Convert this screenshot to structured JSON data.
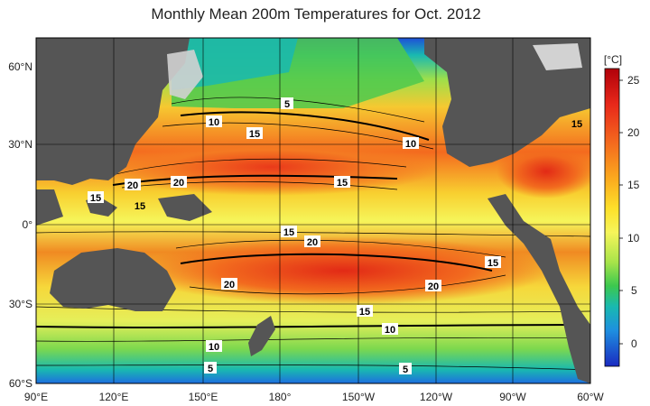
{
  "title": "Monthly Mean 200m Temperatures for Oct. 2012",
  "map": {
    "lon_labels": [
      "90°E",
      "120°E",
      "150°E",
      "180°",
      "150°W",
      "120°W",
      "90°W",
      "60°W"
    ],
    "lat_labels": [
      "60°N",
      "30°N",
      "0°",
      "30°S",
      "60°S"
    ],
    "contour_labels": [
      "5",
      "10",
      "15",
      "20",
      "15",
      "20",
      "15",
      "10",
      "15",
      "20",
      "15",
      "20",
      "15",
      "10",
      "5",
      "5",
      "10",
      "20",
      "15",
      "15"
    ]
  },
  "colorbar": {
    "unit": "[°C]",
    "ticks": [
      "25",
      "20",
      "15",
      "10",
      "5",
      "0"
    ],
    "colors": [
      "#c0000a",
      "#e8281a",
      "#f46a1e",
      "#fbaa1e",
      "#fde02a",
      "#f6f55a",
      "#b8e84a",
      "#54cf4e",
      "#19b9b0",
      "#1e8fe0",
      "#1e4fd8",
      "#1a2ac0"
    ]
  },
  "land_color": "#555555",
  "ice_color": "#d2d2d2"
}
